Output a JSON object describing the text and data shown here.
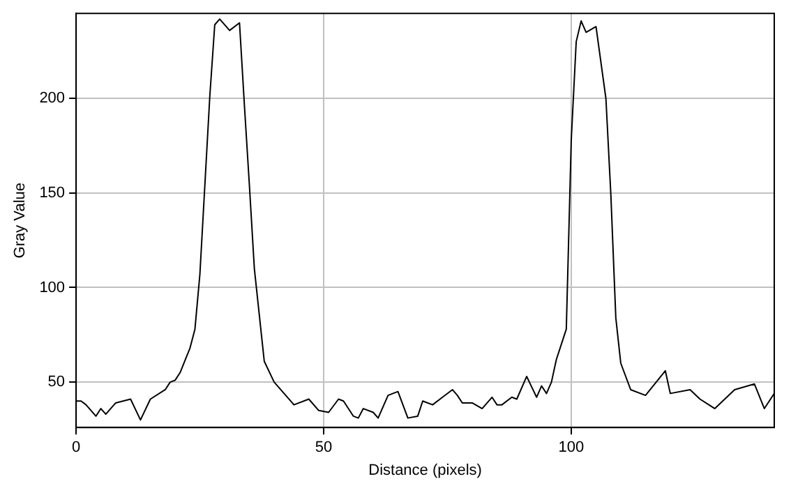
{
  "chart_data": {
    "type": "line",
    "xlabel": "Distance (pixels)",
    "ylabel": "Gray Value",
    "x": [
      0,
      1,
      2,
      4,
      5,
      6,
      8,
      11,
      13,
      15,
      18,
      19,
      20,
      21,
      23,
      24,
      25,
      26,
      27,
      28,
      29,
      31,
      33,
      34,
      35,
      36,
      38,
      40,
      44,
      47,
      49,
      51,
      53,
      54,
      56,
      57,
      58,
      60,
      61,
      63,
      65,
      67,
      69,
      70,
      72,
      74,
      76,
      77,
      78,
      80,
      82,
      84,
      85,
      86,
      88,
      89,
      91,
      93,
      94,
      95,
      96,
      97,
      99,
      100,
      101,
      102,
      103,
      105,
      107,
      108,
      109,
      110,
      112,
      115,
      119,
      120,
      124,
      126,
      129,
      133,
      137,
      139,
      141
    ],
    "series": [
      {
        "color": "#000000",
        "values": [
          40,
          40,
          38,
          32,
          36,
          33,
          39,
          41,
          30,
          41,
          46,
          50,
          51,
          55,
          68,
          78,
          107,
          154,
          201,
          239,
          242,
          236,
          240,
          196,
          154,
          110,
          61,
          50,
          38,
          41,
          35,
          34,
          41,
          40,
          32,
          31,
          36,
          34,
          31,
          43,
          45,
          31,
          32,
          40,
          38,
          42,
          46,
          43,
          39,
          39,
          36,
          42,
          38,
          38,
          42,
          41,
          53,
          42,
          48,
          44,
          50,
          62,
          78,
          178,
          230,
          241,
          235,
          238,
          200,
          149,
          84,
          60,
          46,
          43,
          56,
          44,
          46,
          41,
          36,
          46,
          49,
          36,
          44
        ]
      }
    ],
    "xlim": [
      0,
      141
    ],
    "ylim": [
      26,
      245
    ],
    "xticks": [
      0,
      50,
      100
    ],
    "yticks": [
      50,
      100,
      150,
      200
    ],
    "grid": true,
    "legend": false,
    "marker": "none",
    "line_style": "solid"
  }
}
